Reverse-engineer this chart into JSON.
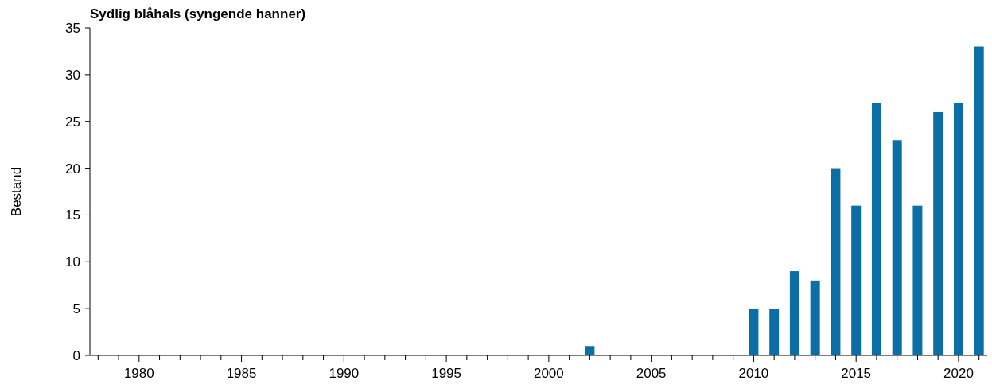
{
  "chart_data": {
    "type": "bar",
    "title": "Sydlig blåhals (syngende hanner)",
    "ylabel": "Bestand",
    "x": [
      2002,
      2010,
      2011,
      2012,
      2013,
      2014,
      2015,
      2016,
      2017,
      2018,
      2019,
      2020,
      2021
    ],
    "values": [
      1,
      5,
      5,
      9,
      8,
      20,
      16,
      27,
      23,
      16,
      26,
      27,
      33
    ],
    "color": "#0b6ea6",
    "xlim": [
      1977.6,
      2021.4
    ],
    "xticks": [
      {
        "value": 1978,
        "label": null
      },
      {
        "value": 1979,
        "label": null
      },
      1980,
      {
        "value": 1981,
        "label": null
      },
      {
        "value": 1982,
        "label": null
      },
      {
        "value": 1983,
        "label": null
      },
      {
        "value": 1984,
        "label": null
      },
      1985,
      {
        "value": 1986,
        "label": null
      },
      {
        "value": 1987,
        "label": null
      },
      {
        "value": 1988,
        "label": null
      },
      {
        "value": 1989,
        "label": null
      },
      1990,
      {
        "value": 1991,
        "label": null
      },
      {
        "value": 1992,
        "label": null
      },
      {
        "value": 1993,
        "label": null
      },
      {
        "value": 1994,
        "label": null
      },
      1995,
      {
        "value": 1996,
        "label": null
      },
      {
        "value": 1997,
        "label": null
      },
      {
        "value": 1998,
        "label": null
      },
      {
        "value": 1999,
        "label": null
      },
      2000,
      {
        "value": 2001,
        "label": null
      },
      {
        "value": 2002,
        "label": null
      },
      {
        "value": 2003,
        "label": null
      },
      {
        "value": 2004,
        "label": null
      },
      2005,
      {
        "value": 2006,
        "label": null
      },
      {
        "value": 2007,
        "label": null
      },
      {
        "value": 2008,
        "label": null
      },
      {
        "value": 2009,
        "label": null
      },
      2010,
      {
        "value": 2011,
        "label": null
      },
      {
        "value": 2012,
        "label": null
      },
      {
        "value": 2013,
        "label": null
      },
      {
        "value": 2014,
        "label": null
      },
      2015,
      {
        "value": 2016,
        "label": null
      },
      {
        "value": 2017,
        "label": null
      },
      {
        "value": 2018,
        "label": null
      },
      {
        "value": 2019,
        "label": null
      },
      2020,
      {
        "value": 2021,
        "label": null
      }
    ],
    "ylim": [
      0,
      35
    ],
    "yticks": [
      0,
      5,
      10,
      15,
      20,
      25,
      30,
      35
    ],
    "grid": false
  }
}
